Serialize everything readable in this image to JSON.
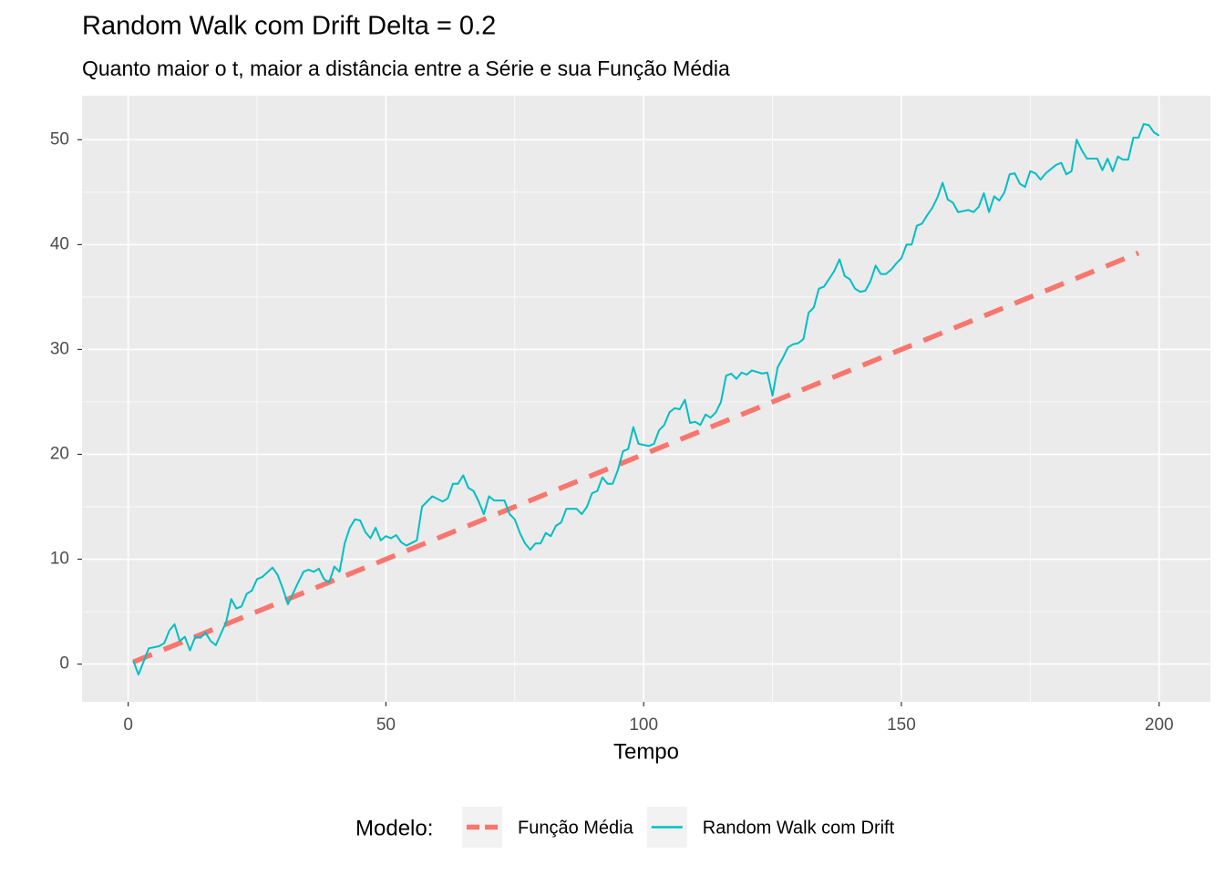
{
  "chart_data": {
    "type": "line",
    "title": "Random Walk com Drift Delta = 0.2",
    "subtitle": "Quanto maior o t, maior a distância entre a Série e sua Função Média",
    "x_label": "Tempo",
    "legend_title": "Modelo:",
    "legend_position": "bottom",
    "grid": true,
    "xlim": [
      -8.95,
      209.95
    ],
    "ylim": [
      -3.6,
      54.2
    ],
    "xticks": [
      0,
      50,
      100,
      150,
      200
    ],
    "yticks": [
      0,
      10,
      20,
      30,
      40,
      50
    ],
    "series": [
      {
        "name": "Função Média",
        "color": "#F8766D",
        "dashed": true,
        "x": [
          1,
          196
        ],
        "values": [
          0.2,
          39.2
        ]
      },
      {
        "name": "Random Walk com Drift",
        "color": "#00BFC4",
        "x": [
          1,
          2,
          4,
          6,
          7,
          8,
          9,
          10,
          11,
          12,
          13,
          14,
          15,
          16,
          17,
          19,
          20,
          21,
          22,
          23,
          24,
          25,
          26,
          28,
          29,
          30,
          31,
          33,
          34,
          35,
          36,
          37,
          38,
          39,
          40,
          41,
          42,
          43,
          44,
          45,
          46,
          47,
          48,
          49,
          50,
          51,
          52,
          53,
          54,
          56,
          57,
          59,
          61,
          62,
          63,
          64,
          65,
          66,
          67,
          68,
          69,
          70,
          71,
          73,
          74,
          75,
          76,
          77,
          78,
          79,
          80,
          81,
          82,
          83,
          84,
          85,
          87,
          88,
          89,
          90,
          91,
          92,
          93,
          94,
          95,
          96,
          97,
          98,
          99,
          101,
          102,
          103,
          104,
          105,
          106,
          107,
          108,
          109,
          110,
          111,
          112,
          113,
          114,
          115,
          116,
          117,
          118,
          119,
          120,
          121,
          123,
          124,
          125,
          126,
          127,
          128,
          129,
          130,
          131,
          132,
          133,
          134,
          135,
          137,
          138,
          139,
          140,
          141,
          142,
          143,
          144,
          145,
          146,
          147,
          148,
          149,
          150,
          151,
          152,
          153,
          154,
          155,
          156,
          157,
          158,
          159,
          160,
          161,
          162,
          163,
          164,
          165,
          166,
          167,
          168,
          169,
          170,
          171,
          172,
          173,
          174,
          175,
          176,
          177,
          178,
          179,
          180,
          181,
          182,
          183,
          184,
          185,
          186,
          187,
          188,
          189,
          190,
          191,
          192,
          193,
          194,
          195,
          196,
          197,
          198,
          199,
          200
        ],
        "values": [
          0.3,
          -1,
          1.5,
          1.7,
          2,
          3.2,
          3.8,
          2.2,
          2.6,
          1.3,
          2.6,
          2.5,
          3,
          2.2,
          1.8,
          4,
          6.2,
          5.3,
          5.5,
          6.7,
          7,
          8.1,
          8.3,
          9.2,
          8.5,
          7.2,
          5.7,
          7.8,
          8.8,
          9,
          8.8,
          9.1,
          8.1,
          7.8,
          9.3,
          8.8,
          11.5,
          13,
          13.8,
          13.7,
          12.6,
          12,
          13,
          11.8,
          12.2,
          12,
          12.3,
          11.6,
          11.3,
          11.8,
          15,
          16,
          15.5,
          15.8,
          17.2,
          17.2,
          18,
          16.8,
          16.5,
          15.5,
          14.3,
          16,
          15.6,
          15.6,
          14.3,
          13.8,
          12.5,
          11.5,
          10.9,
          11.5,
          11.5,
          12.5,
          12.2,
          13.2,
          13.5,
          14.8,
          14.8,
          14.3,
          15,
          16.3,
          16.5,
          17.8,
          17.2,
          17.2,
          18.5,
          20.3,
          20.5,
          22.6,
          21,
          20.8,
          21,
          22.3,
          22.8,
          24,
          24.4,
          24.3,
          25.2,
          23,
          23.1,
          22.8,
          23.8,
          23.5,
          24,
          25,
          27.5,
          27.7,
          27.2,
          27.8,
          27.6,
          28,
          27.7,
          27.8,
          25.6,
          28.3,
          29.2,
          30.2,
          30.5,
          30.6,
          31,
          33.5,
          34,
          35.8,
          36,
          37.5,
          38.6,
          37,
          36.7,
          35.8,
          35.5,
          35.6,
          36.5,
          38,
          37.2,
          37.2,
          37.6,
          38.2,
          38.7,
          40,
          40,
          41.8,
          42,
          42.8,
          43.5,
          44.5,
          45.9,
          44.3,
          44,
          43.1,
          43.2,
          43.3,
          43.1,
          43.6,
          44.9,
          43.1,
          44.6,
          44.2,
          45,
          46.7,
          46.8,
          45.8,
          45.5,
          47,
          46.8,
          46.2,
          46.8,
          47.2,
          47.6,
          47.8,
          46.7,
          47,
          50,
          49,
          48.2,
          48.2,
          48.2,
          47.1,
          48.2,
          47,
          48.4,
          48.1,
          48.1,
          50.2,
          50.2,
          51.5,
          51.4,
          50.7,
          50.4
        ]
      }
    ]
  }
}
